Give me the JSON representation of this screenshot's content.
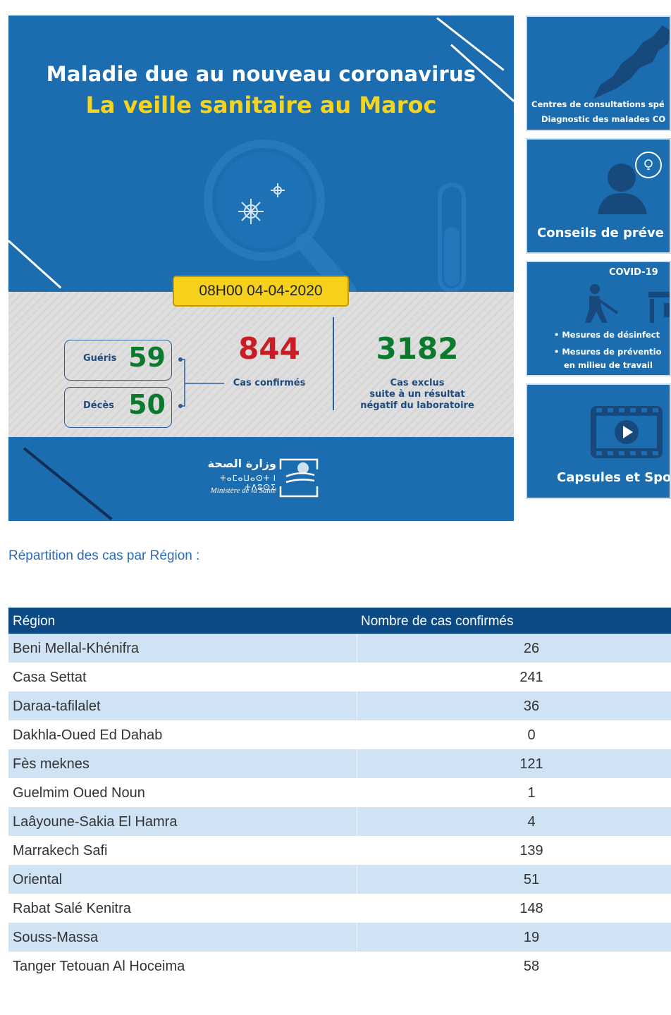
{
  "banner": {
    "title_line1": "Maladie due au nouveau coronavirus",
    "title_line2": "La veille sanitaire au Maroc",
    "date": "08H00  04-04-2020",
    "recovered_label": "Guéris",
    "recovered_value": "59",
    "deaths_label": "Décès",
    "deaths_value": "50",
    "confirmed_value": "844",
    "confirmed_label": "Cas confirmés",
    "excluded_value": "3182",
    "excluded_label_1": "Cas exclus",
    "excluded_label_2": "suite à un résultat",
    "excluded_label_3": "négatif du laboratoire",
    "ministry_ar": "وزارة الصحة",
    "ministry_tif": "ⵜⴰⵎⴰⵡⴰⵙⵜ ⵏ ⵜⴷⵓⵙⵉ",
    "ministry_fr": "Ministère de la Santé",
    "colors": {
      "blue": "#1c6db0",
      "yellow": "#f6d31c",
      "red": "#c81d25",
      "green": "#0c7a2c"
    }
  },
  "side_cards": [
    {
      "line1": "Centres de consultations spé",
      "line2": "Diagnostic des malades CO",
      "icon": "morocco-map-icon"
    },
    {
      "line1": "Conseils de préve",
      "icon": "advice-person-icon"
    },
    {
      "heading": "COVID-19",
      "bullet1": "Mesures de désinfect",
      "bullet2": "Mesures de préventio",
      "bullet2b": "en milieu de travail",
      "icon": "disinfection-icon"
    },
    {
      "line1": "Capsules et Spo",
      "icon": "video-play-icon"
    }
  ],
  "section_title": "Répartition des cas par Région :",
  "table": {
    "headers": [
      "Région",
      "Nombre de cas confirmés"
    ],
    "rows": [
      {
        "region": "Beni Mellal-Khénifra",
        "cases": "26"
      },
      {
        "region": "Casa Settat",
        "cases": "241"
      },
      {
        "region": "Daraa-tafilalet",
        "cases": "36"
      },
      {
        "region": "Dakhla-Oued Ed Dahab",
        "cases": "0"
      },
      {
        "region": "Fès meknes",
        "cases": "121"
      },
      {
        "region": "Guelmim Oued Noun",
        "cases": "1"
      },
      {
        "region": "Laâyoune-Sakia El Hamra",
        "cases": "4"
      },
      {
        "region": "Marrakech Safi",
        "cases": "139"
      },
      {
        "region": "Oriental",
        "cases": "51"
      },
      {
        "region": "Rabat Salé Kenitra",
        "cases": "148"
      },
      {
        "region": "Souss-Massa",
        "cases": "19"
      },
      {
        "region": "Tanger Tetouan Al Hoceima",
        "cases": "58"
      }
    ]
  }
}
